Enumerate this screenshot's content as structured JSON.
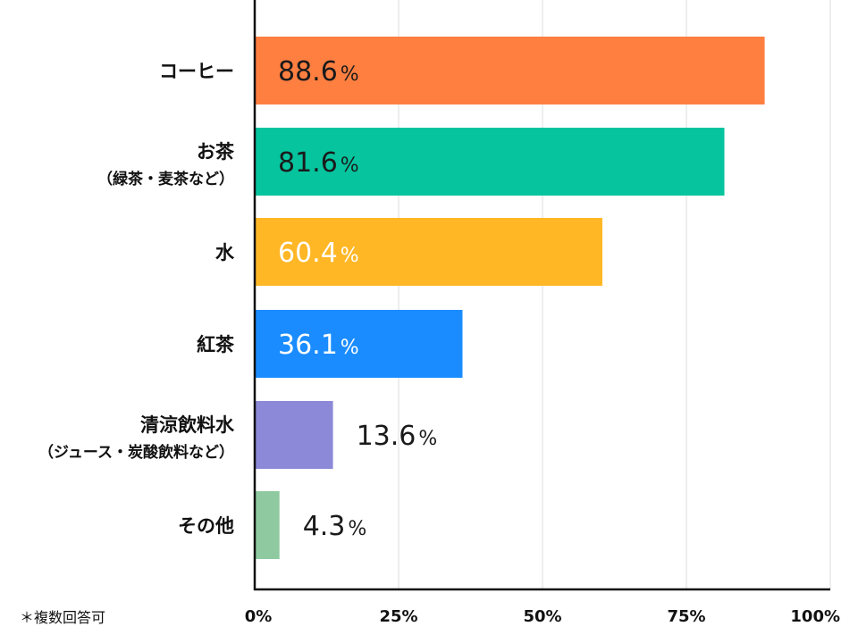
{
  "chart_data": {
    "type": "bar",
    "orientation": "horizontal",
    "categories": [
      {
        "label": "コーヒー",
        "sub": ""
      },
      {
        "label": "お茶",
        "sub": "（緑茶・麦茶など）"
      },
      {
        "label": "水",
        "sub": ""
      },
      {
        "label": "紅茶",
        "sub": ""
      },
      {
        "label": "清涼飲料水",
        "sub": "（ジュース・炭酸飲料など）"
      },
      {
        "label": "その他",
        "sub": ""
      }
    ],
    "values": [
      88.6,
      81.6,
      60.4,
      36.1,
      13.6,
      4.3
    ],
    "value_labels": [
      "88.6",
      "81.6",
      "60.4",
      "36.1",
      "13.6",
      "4.3"
    ],
    "value_unit": "%",
    "colors": [
      "#ff7f41",
      "#06c49e",
      "#ffb726",
      "#1a8cff",
      "#8c89d8",
      "#8ec9a0"
    ],
    "xlim": [
      0,
      100
    ],
    "ticks": [
      0,
      25,
      50,
      75,
      100
    ],
    "tick_labels": [
      "0%",
      "25%",
      "50%",
      "75%",
      "100%"
    ],
    "grid": true
  },
  "footnote": "＊複数回答可"
}
